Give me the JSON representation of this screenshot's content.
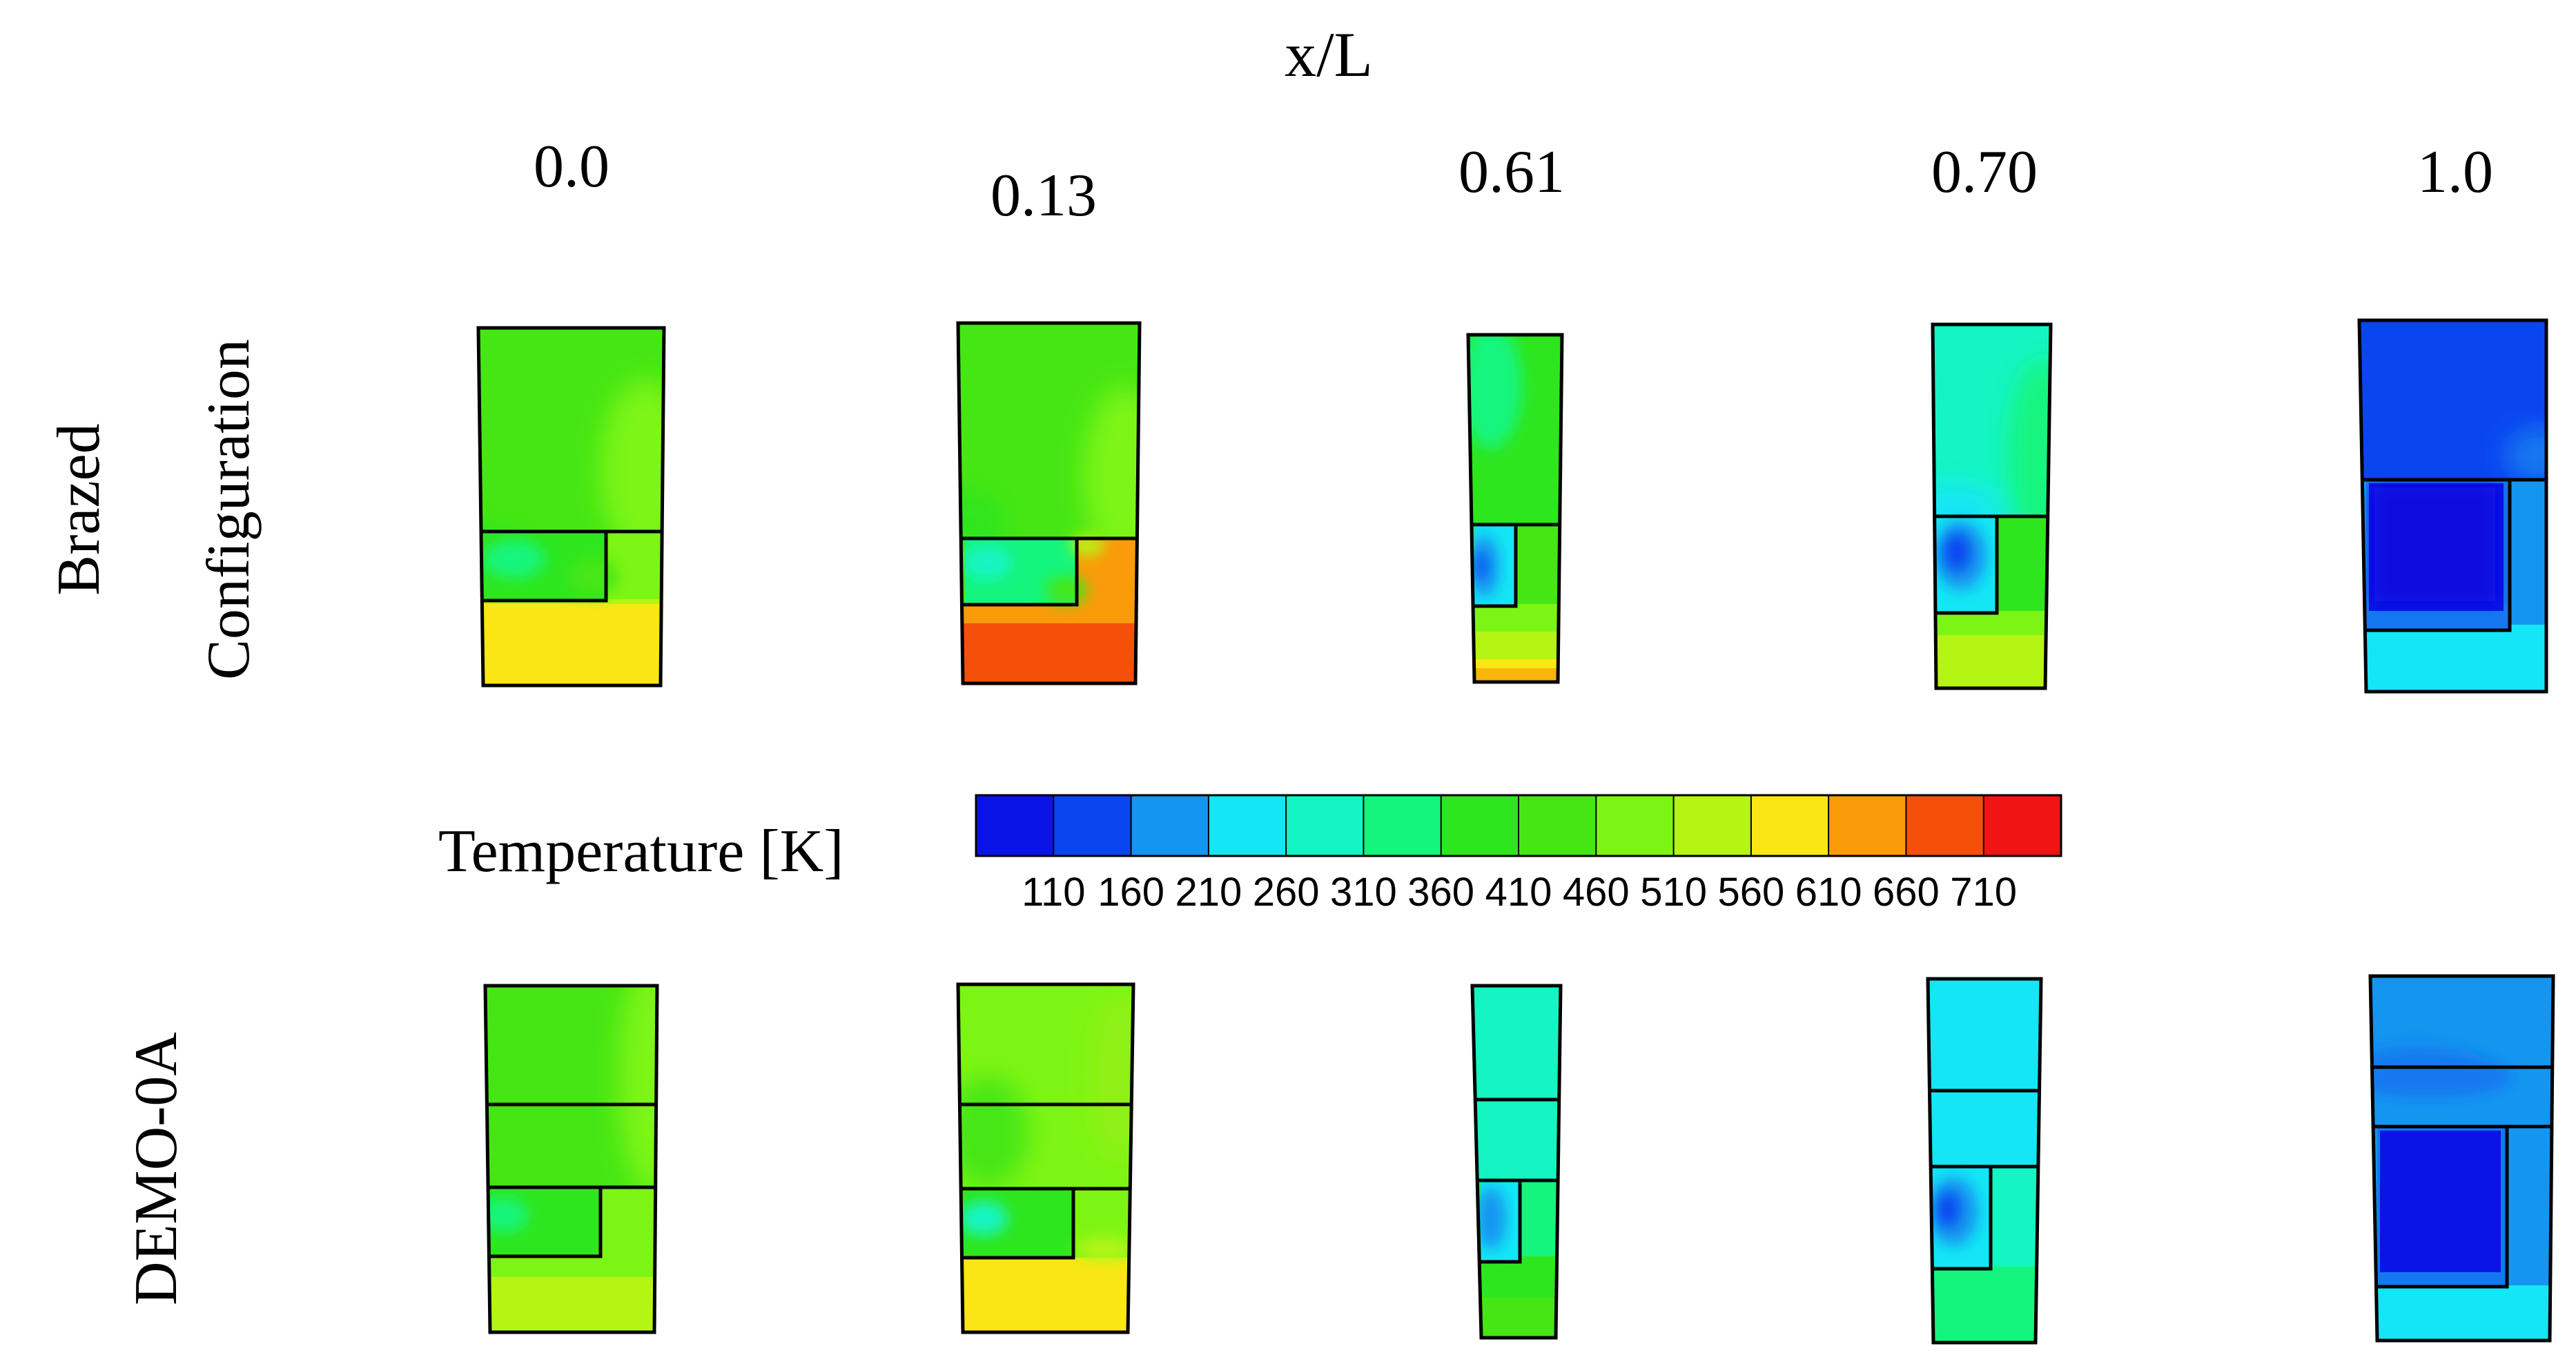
{
  "axis_title": "x/L",
  "positions": [
    "0.0",
    "0.13",
    "0.61",
    "0.70",
    "1.0"
  ],
  "row_labels": {
    "top_line1": "Brazed",
    "top_line2": "Configuration",
    "bottom": "DEMO-0A"
  },
  "legend": {
    "title": "Temperature [K]",
    "ticks": [
      "110",
      "160",
      "210",
      "260",
      "310",
      "360",
      "410",
      "460",
      "510",
      "560",
      "610",
      "660",
      "710"
    ],
    "colors": [
      "#0a14e6",
      "#0a46f0",
      "#1496f0",
      "#14e6f5",
      "#14f5c3",
      "#14f57d",
      "#2ee61e",
      "#46e614",
      "#7df514",
      "#b4f514",
      "#fae614",
      "#fa9b0a",
      "#f5500a",
      "#f01414"
    ]
  }
}
